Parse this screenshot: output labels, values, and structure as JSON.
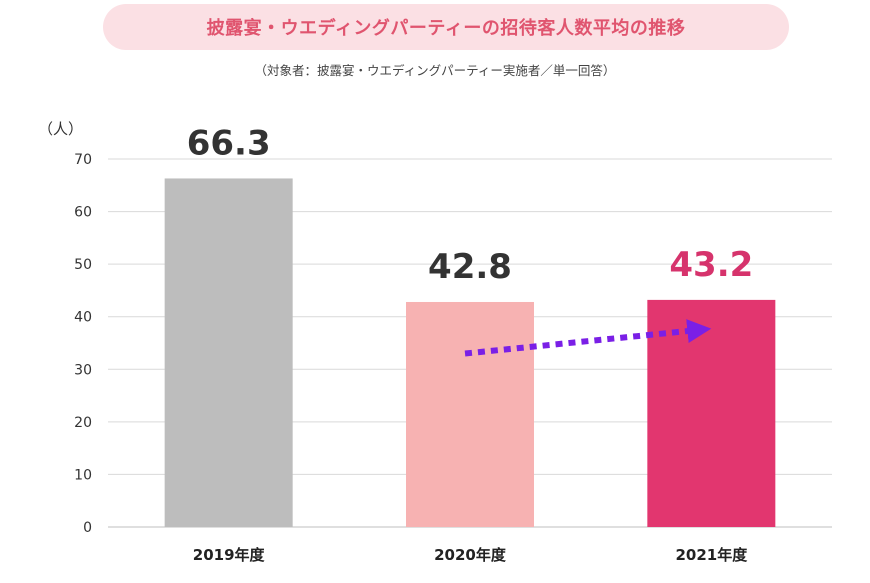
{
  "title": "披露宴・ウエディングパーティーの招待客人数平均の推移",
  "subtitle": "（対象者：披露宴・ウエディングパーティー実施者／単一回答）",
  "colors": {
    "title_bg": "#fbe0e4",
    "title_text": "#e0556f",
    "arrow": "#7a1fe6"
  },
  "chart_data": {
    "type": "bar",
    "categories": [
      "2019年度",
      "2020年度",
      "2021年度"
    ],
    "values": [
      66.3,
      42.8,
      43.2
    ],
    "value_labels": [
      "66.3",
      "42.8",
      "43.2"
    ],
    "bar_colors": [
      "#bdbdbd",
      "#f7b2b2",
      "#e2366f"
    ],
    "label_colors": [
      "#333333",
      "#333333",
      "#d6336c"
    ],
    "ylabel": "（人）",
    "ylim": [
      0,
      70
    ],
    "yticks": [
      0,
      10,
      20,
      30,
      40,
      50,
      60,
      70
    ],
    "grid": true,
    "annotations": [
      "dotted upward arrow from 2020年度 to 2021年度"
    ]
  }
}
